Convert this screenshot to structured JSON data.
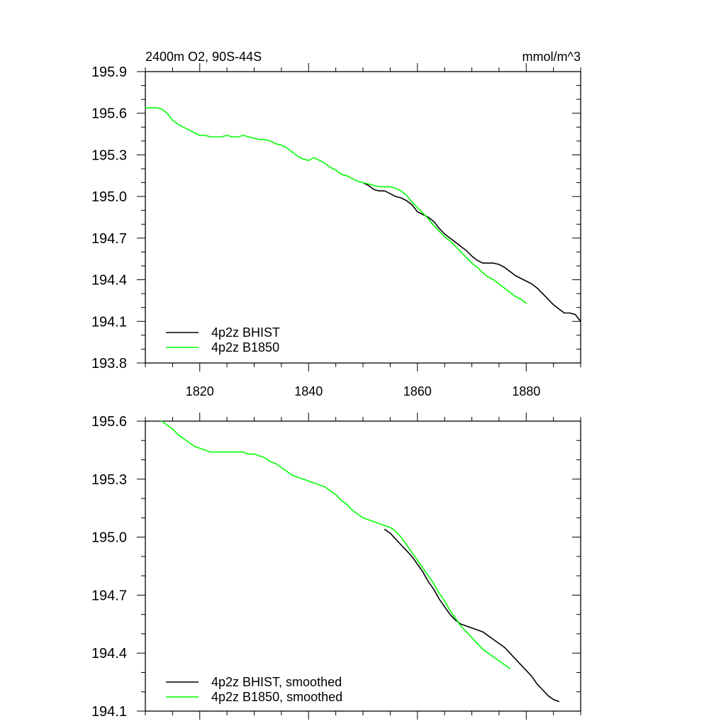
{
  "chart_data": [
    {
      "type": "line",
      "title": "2400m O2, 90S-44S",
      "units": "mmol/m^3",
      "xlim": [
        1810,
        1890
      ],
      "ylim": [
        193.8,
        195.9
      ],
      "x_ticks": [
        1820,
        1840,
        1860,
        1880
      ],
      "y_ticks": [
        193.8,
        194.1,
        194.4,
        194.7,
        195.0,
        195.3,
        195.6,
        195.9
      ],
      "y_tick_labels": [
        "193.8",
        "194.1",
        "194.4",
        "194.7",
        "195.0",
        "195.3",
        "195.6",
        "195.9"
      ],
      "legend_position": "bottom-left",
      "series": [
        {
          "name": "4p2z BHIST",
          "color": "#000000",
          "x": [
            1850,
            1851,
            1852,
            1853,
            1854,
            1855,
            1856,
            1857,
            1858,
            1859,
            1860,
            1861,
            1862,
            1863,
            1864,
            1865,
            1866,
            1867,
            1868,
            1869,
            1870,
            1871,
            1872,
            1873,
            1874,
            1875,
            1876,
            1877,
            1878,
            1879,
            1880,
            1881,
            1882,
            1883,
            1884,
            1885,
            1886,
            1887,
            1888,
            1889,
            1890
          ],
          "values": [
            195.1,
            195.08,
            195.05,
            195.04,
            195.04,
            195.02,
            195.0,
            194.99,
            194.97,
            194.94,
            194.89,
            194.87,
            194.85,
            194.82,
            194.77,
            194.73,
            194.7,
            194.67,
            194.64,
            194.61,
            194.57,
            194.54,
            194.52,
            194.52,
            194.52,
            194.51,
            194.49,
            194.46,
            194.43,
            194.41,
            194.39,
            194.37,
            194.34,
            194.3,
            194.26,
            194.22,
            194.19,
            194.16,
            194.16,
            194.15,
            194.1
          ]
        },
        {
          "name": "4p2z B1850",
          "color": "#00ff00",
          "x": [
            1810,
            1811,
            1812,
            1813,
            1814,
            1815,
            1816,
            1817,
            1818,
            1819,
            1820,
            1821,
            1822,
            1823,
            1824,
            1825,
            1826,
            1827,
            1828,
            1829,
            1830,
            1831,
            1832,
            1833,
            1834,
            1835,
            1836,
            1837,
            1838,
            1839,
            1840,
            1841,
            1842,
            1843,
            1844,
            1845,
            1846,
            1847,
            1848,
            1849,
            1850,
            1851,
            1852,
            1853,
            1854,
            1855,
            1856,
            1857,
            1858,
            1859,
            1860,
            1861,
            1862,
            1863,
            1864,
            1865,
            1866,
            1867,
            1868,
            1869,
            1870,
            1871,
            1872,
            1873,
            1874,
            1875,
            1876,
            1877,
            1878,
            1879,
            1880
          ],
          "values": [
            195.64,
            195.64,
            195.64,
            195.63,
            195.6,
            195.55,
            195.52,
            195.5,
            195.48,
            195.46,
            195.44,
            195.44,
            195.43,
            195.43,
            195.43,
            195.44,
            195.43,
            195.43,
            195.44,
            195.43,
            195.42,
            195.41,
            195.41,
            195.4,
            195.38,
            195.37,
            195.35,
            195.32,
            195.29,
            195.27,
            195.26,
            195.28,
            195.26,
            195.24,
            195.21,
            195.19,
            195.16,
            195.15,
            195.13,
            195.11,
            195.1,
            195.09,
            195.08,
            195.07,
            195.07,
            195.07,
            195.06,
            195.04,
            195.01,
            194.96,
            194.92,
            194.88,
            194.84,
            194.79,
            194.75,
            194.71,
            194.68,
            194.64,
            194.6,
            194.56,
            194.52,
            194.49,
            194.45,
            194.42,
            194.4,
            194.37,
            194.34,
            194.31,
            194.28,
            194.26,
            194.23
          ]
        }
      ]
    },
    {
      "type": "line",
      "xlim": [
        1810,
        1890
      ],
      "ylim": [
        194.1,
        195.6
      ],
      "y_ticks": [
        194.1,
        194.4,
        194.7,
        195.0,
        195.3,
        195.6
      ],
      "y_tick_labels": [
        "194.1",
        "194.4",
        "194.7",
        "195.0",
        "195.3",
        "195.6"
      ],
      "legend_position": "bottom-left",
      "series": [
        {
          "name": "4p2z BHIST, smoothed",
          "color": "#000000",
          "x": [
            1854,
            1855,
            1856,
            1857,
            1858,
            1859,
            1860,
            1861,
            1862,
            1863,
            1864,
            1865,
            1866,
            1867,
            1868,
            1869,
            1870,
            1871,
            1872,
            1873,
            1874,
            1875,
            1876,
            1877,
            1878,
            1879,
            1880,
            1881,
            1882,
            1883,
            1884,
            1885,
            1886
          ],
          "values": [
            195.04,
            195.02,
            194.99,
            194.96,
            194.93,
            194.9,
            194.86,
            194.82,
            194.77,
            194.73,
            194.68,
            194.64,
            194.6,
            194.57,
            194.55,
            194.54,
            194.53,
            194.52,
            194.51,
            194.49,
            194.47,
            194.45,
            194.43,
            194.4,
            194.37,
            194.34,
            194.31,
            194.28,
            194.24,
            194.21,
            194.18,
            194.16,
            194.15
          ]
        },
        {
          "name": "4p2z B1850, smoothed",
          "color": "#00ff00",
          "x": [
            1813,
            1814,
            1815,
            1816,
            1817,
            1818,
            1819,
            1820,
            1821,
            1822,
            1823,
            1824,
            1825,
            1826,
            1827,
            1828,
            1829,
            1830,
            1831,
            1832,
            1833,
            1834,
            1835,
            1836,
            1837,
            1838,
            1839,
            1840,
            1841,
            1842,
            1843,
            1844,
            1845,
            1846,
            1847,
            1848,
            1849,
            1850,
            1851,
            1852,
            1853,
            1854,
            1855,
            1856,
            1857,
            1858,
            1859,
            1860,
            1861,
            1862,
            1863,
            1864,
            1865,
            1866,
            1867,
            1868,
            1869,
            1870,
            1871,
            1872,
            1873,
            1874,
            1875,
            1876,
            1877
          ],
          "values": [
            195.6,
            195.58,
            195.56,
            195.53,
            195.51,
            195.49,
            195.47,
            195.46,
            195.45,
            195.44,
            195.44,
            195.44,
            195.44,
            195.44,
            195.44,
            195.44,
            195.43,
            195.43,
            195.42,
            195.41,
            195.39,
            195.38,
            195.36,
            195.34,
            195.32,
            195.31,
            195.3,
            195.29,
            195.28,
            195.27,
            195.26,
            195.24,
            195.22,
            195.19,
            195.17,
            195.14,
            195.12,
            195.1,
            195.09,
            195.08,
            195.07,
            195.06,
            195.05,
            195.03,
            195.0,
            194.96,
            194.92,
            194.88,
            194.84,
            194.8,
            194.76,
            194.71,
            194.67,
            194.62,
            194.58,
            194.54,
            194.51,
            194.48,
            194.45,
            194.42,
            194.4,
            194.38,
            194.36,
            194.34,
            194.32
          ]
        }
      ]
    }
  ]
}
